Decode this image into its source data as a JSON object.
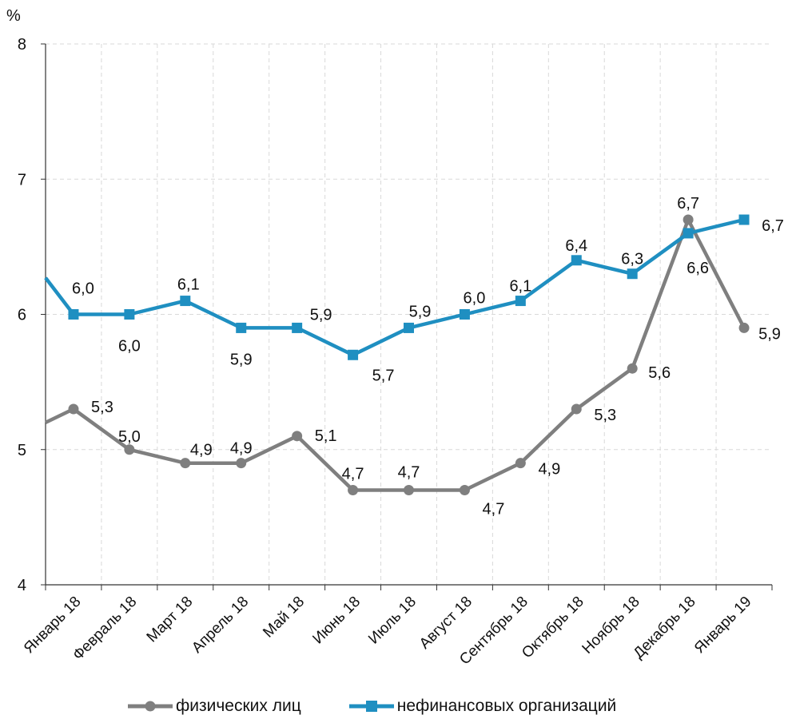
{
  "chart_data": {
    "type": "line",
    "ylabel": "%",
    "ylim": [
      4,
      8
    ],
    "yticks": [
      "4",
      "5",
      "6",
      "7",
      "8"
    ],
    "categories": [
      "Январь 18",
      "Февраль 18",
      "Март 18",
      "Апрель 18",
      "Май 18",
      "Июнь 18",
      "Июль 18",
      "Август 18",
      "Сентябрь 18",
      "Октябрь 18",
      "Ноябрь 18",
      "Декабрь 18",
      "Январь 19"
    ],
    "series": [
      {
        "name": "физических лиц",
        "color": "#7f7f7f",
        "marker": "circle",
        "start_value": 5.2,
        "values": [
          5.3,
          5.0,
          4.9,
          4.9,
          5.1,
          4.7,
          4.7,
          4.7,
          4.9,
          5.3,
          5.6,
          6.7,
          5.9
        ],
        "labels": [
          "5,3",
          "5,0",
          "4,9",
          "4,9",
          "5,1",
          "4,7",
          "4,7",
          "4,7",
          "4,9",
          "5,3",
          "5,6",
          "6,7",
          "5,9"
        ]
      },
      {
        "name": "нефинансовых организаций",
        "color": "#1f8fc1",
        "marker": "square",
        "start_value": 6.27,
        "values": [
          6.0,
          6.0,
          6.1,
          5.9,
          5.9,
          5.7,
          5.9,
          6.0,
          6.1,
          6.4,
          6.3,
          6.6,
          6.7
        ],
        "labels": [
          "6,0",
          "6,0",
          "6,1",
          "5,9",
          "5,9",
          "5,7",
          "5,9",
          "6,0",
          "6,1",
          "6,4",
          "6,3",
          "6,6",
          "6,7"
        ]
      }
    ],
    "grid": true,
    "legend_position": "bottom"
  }
}
